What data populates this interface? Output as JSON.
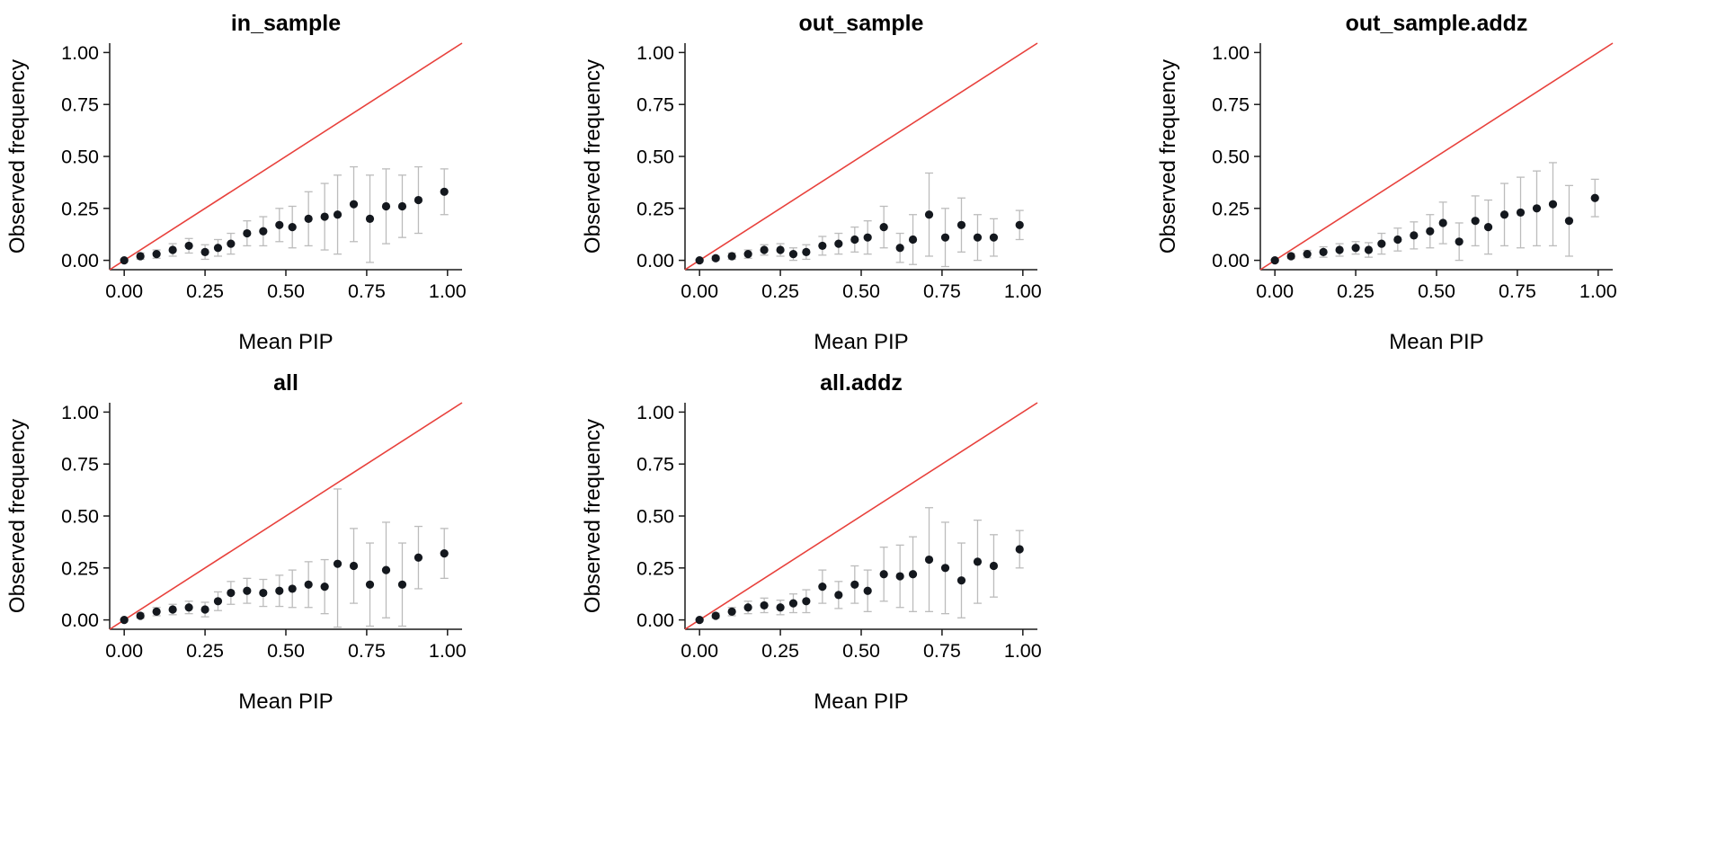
{
  "figure": {
    "background": "#ffffff",
    "text_color": "#000000",
    "axis_color": "#1a1a1a",
    "point_color": "#14181e",
    "errorbar_color": "#bcbcbc",
    "identity_line_color": "#e8413c",
    "x_label": "Mean PIP",
    "y_label": "Observed frequency",
    "x_ticks": [
      "0.00",
      "0.25",
      "0.50",
      "0.75",
      "1.00"
    ],
    "y_ticks": [
      "0.00",
      "0.25",
      "0.50",
      "0.75",
      "1.00"
    ]
  },
  "chart_data": [
    {
      "type": "scatter",
      "name": "in_sample",
      "title": "in_sample",
      "xlabel": "Mean PIP",
      "ylabel": "Observed frequency",
      "xlim": [
        -0.045,
        1.045
      ],
      "ylim": [
        -0.045,
        1.045
      ],
      "identity_line": true,
      "grid": false,
      "x": [
        0.0,
        0.05,
        0.1,
        0.15,
        0.2,
        0.25,
        0.29,
        0.33,
        0.38,
        0.43,
        0.48,
        0.52,
        0.57,
        0.62,
        0.66,
        0.71,
        0.76,
        0.81,
        0.86,
        0.91,
        0.99
      ],
      "y": [
        0.0,
        0.02,
        0.03,
        0.05,
        0.07,
        0.04,
        0.06,
        0.08,
        0.13,
        0.14,
        0.17,
        0.16,
        0.2,
        0.21,
        0.22,
        0.27,
        0.2,
        0.26,
        0.26,
        0.29,
        0.33
      ],
      "err": [
        0.005,
        0.015,
        0.02,
        0.03,
        0.035,
        0.035,
        0.04,
        0.05,
        0.06,
        0.07,
        0.08,
        0.1,
        0.13,
        0.16,
        0.19,
        0.18,
        0.21,
        0.18,
        0.15,
        0.16,
        0.11
      ]
    },
    {
      "type": "scatter",
      "name": "out_sample",
      "title": "out_sample",
      "xlabel": "Mean PIP",
      "ylabel": "Observed frequency",
      "xlim": [
        -0.045,
        1.045
      ],
      "ylim": [
        -0.045,
        1.045
      ],
      "identity_line": true,
      "grid": false,
      "x": [
        0.0,
        0.05,
        0.1,
        0.15,
        0.2,
        0.25,
        0.29,
        0.33,
        0.38,
        0.43,
        0.48,
        0.52,
        0.57,
        0.62,
        0.66,
        0.71,
        0.76,
        0.81,
        0.86,
        0.91,
        0.99
      ],
      "y": [
        0.0,
        0.01,
        0.02,
        0.03,
        0.05,
        0.05,
        0.03,
        0.04,
        0.07,
        0.08,
        0.1,
        0.11,
        0.16,
        0.06,
        0.1,
        0.22,
        0.11,
        0.17,
        0.11,
        0.11,
        0.17
      ],
      "err": [
        0.004,
        0.01,
        0.015,
        0.02,
        0.025,
        0.03,
        0.03,
        0.035,
        0.045,
        0.05,
        0.06,
        0.08,
        0.1,
        0.07,
        0.12,
        0.2,
        0.14,
        0.13,
        0.11,
        0.09,
        0.07
      ]
    },
    {
      "type": "scatter",
      "name": "out_sample.addz",
      "title": "out_sample.addz",
      "xlabel": "Mean PIP",
      "ylabel": "Observed frequency",
      "xlim": [
        -0.045,
        1.045
      ],
      "ylim": [
        -0.045,
        1.045
      ],
      "identity_line": true,
      "grid": false,
      "x": [
        0.0,
        0.05,
        0.1,
        0.15,
        0.2,
        0.25,
        0.29,
        0.33,
        0.38,
        0.43,
        0.48,
        0.52,
        0.57,
        0.62,
        0.66,
        0.71,
        0.76,
        0.81,
        0.86,
        0.91,
        0.99
      ],
      "y": [
        0.0,
        0.02,
        0.03,
        0.04,
        0.05,
        0.06,
        0.05,
        0.08,
        0.1,
        0.12,
        0.14,
        0.18,
        0.09,
        0.19,
        0.16,
        0.22,
        0.23,
        0.25,
        0.27,
        0.19,
        0.3
      ],
      "err": [
        0.004,
        0.012,
        0.018,
        0.025,
        0.03,
        0.03,
        0.035,
        0.05,
        0.055,
        0.065,
        0.08,
        0.1,
        0.09,
        0.12,
        0.13,
        0.15,
        0.17,
        0.18,
        0.2,
        0.17,
        0.09
      ]
    },
    {
      "type": "scatter",
      "name": "all",
      "title": "all",
      "xlabel": "Mean PIP",
      "ylabel": "Observed frequency",
      "xlim": [
        -0.045,
        1.045
      ],
      "ylim": [
        -0.045,
        1.045
      ],
      "identity_line": true,
      "grid": false,
      "x": [
        0.0,
        0.05,
        0.1,
        0.15,
        0.2,
        0.25,
        0.29,
        0.33,
        0.38,
        0.43,
        0.48,
        0.52,
        0.57,
        0.62,
        0.66,
        0.71,
        0.76,
        0.81,
        0.86,
        0.91,
        0.99
      ],
      "y": [
        0.0,
        0.02,
        0.04,
        0.05,
        0.06,
        0.05,
        0.09,
        0.13,
        0.14,
        0.13,
        0.14,
        0.15,
        0.17,
        0.16,
        0.27,
        0.26,
        0.17,
        0.24,
        0.17,
        0.3,
        0.32
      ],
      "err": [
        0.004,
        0.012,
        0.02,
        0.025,
        0.03,
        0.035,
        0.045,
        0.055,
        0.06,
        0.065,
        0.075,
        0.09,
        0.11,
        0.13,
        0.36,
        0.18,
        0.2,
        0.23,
        0.2,
        0.15,
        0.12
      ]
    },
    {
      "type": "scatter",
      "name": "all.addz",
      "title": "all.addz",
      "xlabel": "Mean PIP",
      "ylabel": "Observed frequency",
      "xlim": [
        -0.045,
        1.045
      ],
      "ylim": [
        -0.045,
        1.045
      ],
      "identity_line": true,
      "grid": false,
      "x": [
        0.0,
        0.05,
        0.1,
        0.15,
        0.2,
        0.25,
        0.29,
        0.33,
        0.38,
        0.43,
        0.48,
        0.52,
        0.57,
        0.62,
        0.66,
        0.71,
        0.76,
        0.81,
        0.86,
        0.91,
        0.99
      ],
      "y": [
        0.0,
        0.02,
        0.04,
        0.06,
        0.07,
        0.06,
        0.08,
        0.09,
        0.16,
        0.12,
        0.17,
        0.14,
        0.22,
        0.21,
        0.22,
        0.29,
        0.25,
        0.19,
        0.28,
        0.26,
        0.34
      ],
      "err": [
        0.004,
        0.012,
        0.02,
        0.03,
        0.035,
        0.035,
        0.045,
        0.055,
        0.08,
        0.065,
        0.09,
        0.1,
        0.13,
        0.15,
        0.18,
        0.25,
        0.22,
        0.18,
        0.2,
        0.15,
        0.09
      ]
    }
  ]
}
